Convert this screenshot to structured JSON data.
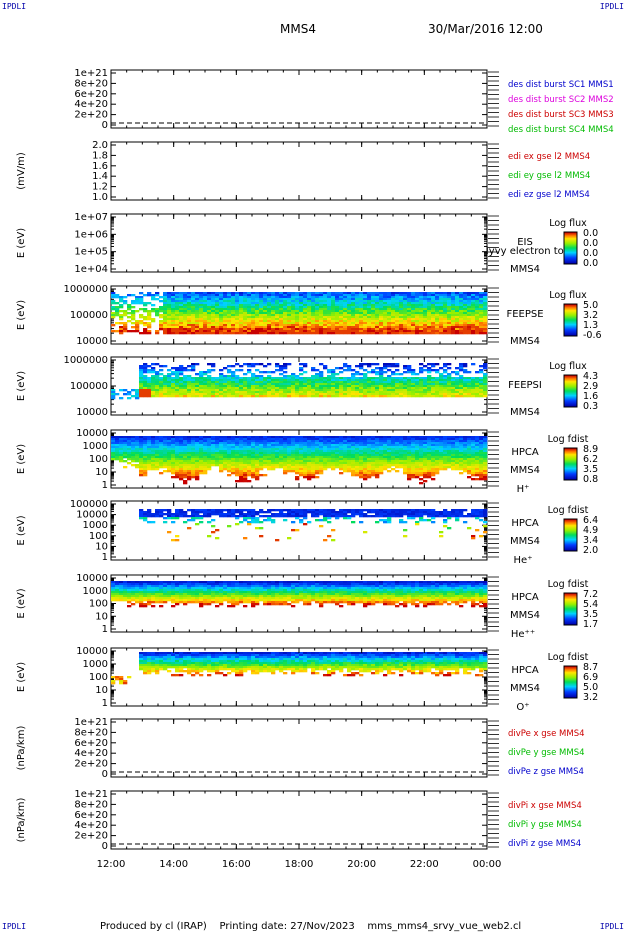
{
  "corners": {
    "tl": "IPDLI",
    "tr": "IPDLI",
    "bl": "IPDLI",
    "br": "IPDLI"
  },
  "header": {
    "title": "MMS4",
    "datetime": "30/Mar/2016 12:00"
  },
  "footer": {
    "produced": "Produced by cl (IRAP)",
    "printing": "Printing date: 27/Nov/2023",
    "file": "mms_mms4_srvy_vue_web2.cl"
  },
  "time_axis": {
    "ticks": [
      "12:00",
      "14:00",
      "16:00",
      "18:00",
      "20:00",
      "22:00",
      "00:00"
    ],
    "start_hours": 12,
    "end_hours": 24
  },
  "colors": {
    "red": "#cc0000",
    "green": "#00bb00",
    "blue": "#0000cc",
    "magenta": "#dd00dd"
  },
  "chart_data": [
    {
      "type": "line",
      "ylabel": "",
      "ytick_labels": [
        "1e+21",
        "8e+20",
        "6e+20",
        "4e+20",
        "2e+20",
        "0"
      ],
      "ylim": [
        0,
        1e+21
      ],
      "zero_dashed": true,
      "legend": [
        {
          "text": "des dist burst SC1 MMS1",
          "color": "#0000cc"
        },
        {
          "text": "des dist burst SC2 MMS2",
          "color": "#dd00dd"
        },
        {
          "text": "des dist burst SC3 MMS3",
          "color": "#cc0000"
        },
        {
          "text": "des dist burst SC4 MMS4",
          "color": "#00bb00"
        }
      ]
    },
    {
      "type": "line",
      "ylabel": "(mV/m)",
      "ytick_labels": [
        "2.0",
        "1.8",
        "1.6",
        "1.4",
        "1.2",
        "1.0"
      ],
      "ylim": [
        1.0,
        2.0
      ],
      "legend": [
        {
          "text": "edi ex gse l2 MMS4",
          "color": "#cc0000"
        },
        {
          "text": "edi ey gse l2 MMS4",
          "color": "#00bb00"
        },
        {
          "text": "edi ez gse l2 MMS4",
          "color": "#0000cc"
        }
      ]
    },
    {
      "type": "heatmap",
      "ylabel": "E (eV)",
      "ytick_labels": [
        "1e+07",
        "1e+06",
        "1e+05",
        "1e+04"
      ],
      "log": true,
      "instrument": [
        "EIS",
        "MMS4"
      ],
      "overlay": "lyvy electron to",
      "cbar_title": "Log flux",
      "cbar_ticks": [
        "0.0",
        "0.0",
        "0.0",
        "0.0"
      ],
      "fill": "none"
    },
    {
      "type": "heatmap",
      "ylabel": "E (eV)",
      "ytick_labels": [
        "1000000",
        "100000",
        "10000"
      ],
      "log": true,
      "instrument": [
        "FEEPSE",
        "MMS4"
      ],
      "cbar_title": "Log flux",
      "cbar_ticks": [
        "5.0",
        "3.2",
        "1.3",
        "-0.6"
      ],
      "fill": "feepse"
    },
    {
      "type": "heatmap",
      "ylabel": "E (eV)",
      "ytick_labels": [
        "1000000",
        "100000",
        "10000"
      ],
      "log": true,
      "instrument": [
        "FEEPSI",
        "MMS4"
      ],
      "cbar_title": "Log flux",
      "cbar_ticks": [
        "4.3",
        "2.9",
        "1.6",
        "0.3"
      ],
      "fill": "feepsi"
    },
    {
      "type": "heatmap",
      "ylabel": "E (eV)",
      "ytick_labels": [
        "10000",
        "1000",
        "100",
        "10",
        "1"
      ],
      "log": true,
      "instrument": [
        "HPCA",
        "MMS4",
        "H⁺"
      ],
      "cbar_title": "Log fdist",
      "cbar_ticks": [
        "8.9",
        "6.2",
        "3.5",
        "0.8"
      ],
      "fill": "hplus"
    },
    {
      "type": "heatmap",
      "ylabel": "E (eV)",
      "ytick_labels": [
        "100000",
        "10000",
        "1000",
        "100",
        "10",
        "1"
      ],
      "log": true,
      "instrument": [
        "HPCA",
        "MMS4",
        "He⁺"
      ],
      "cbar_title": "Log fdist",
      "cbar_ticks": [
        "6.4",
        "4.9",
        "3.4",
        "2.0"
      ],
      "fill": "heplus"
    },
    {
      "type": "heatmap",
      "ylabel": "E (eV)",
      "ytick_labels": [
        "10000",
        "1000",
        "100",
        "10",
        "1"
      ],
      "log": true,
      "instrument": [
        "HPCA",
        "MMS4",
        "He⁺⁺"
      ],
      "cbar_title": "Log fdist",
      "cbar_ticks": [
        "7.2",
        "5.4",
        "3.5",
        "1.7"
      ],
      "fill": "heplusplus"
    },
    {
      "type": "heatmap",
      "ylabel": "E (eV)",
      "ytick_labels": [
        "10000",
        "1000",
        "100",
        "10",
        "1"
      ],
      "log": true,
      "instrument": [
        "HPCA",
        "MMS4",
        "O⁺"
      ],
      "cbar_title": "Log fdist",
      "cbar_ticks": [
        "8.7",
        "6.9",
        "5.0",
        "3.2"
      ],
      "fill": "oplus"
    },
    {
      "type": "line",
      "ylabel": "(nPa/km)",
      "ytick_labels": [
        "1e+21",
        "8e+20",
        "6e+20",
        "4e+20",
        "2e+20",
        "0"
      ],
      "ylim": [
        0,
        1e+21
      ],
      "zero_dashed": true,
      "legend": [
        {
          "text": "divPe x gse MMS4",
          "color": "#cc0000"
        },
        {
          "text": "divPe y gse MMS4",
          "color": "#00bb00"
        },
        {
          "text": "divPe z gse MMS4",
          "color": "#0000cc"
        }
      ]
    },
    {
      "type": "line",
      "ylabel": "(nPa/km)",
      "ytick_labels": [
        "1e+21",
        "8e+20",
        "6e+20",
        "4e+20",
        "2e+20",
        "0"
      ],
      "ylim": [
        0,
        1e+21
      ],
      "zero_dashed": true,
      "legend": [
        {
          "text": "divPi x gse MMS4",
          "color": "#cc0000"
        },
        {
          "text": "divPi y gse MMS4",
          "color": "#00bb00"
        },
        {
          "text": "divPi z gse MMS4",
          "color": "#0000cc"
        }
      ]
    }
  ]
}
